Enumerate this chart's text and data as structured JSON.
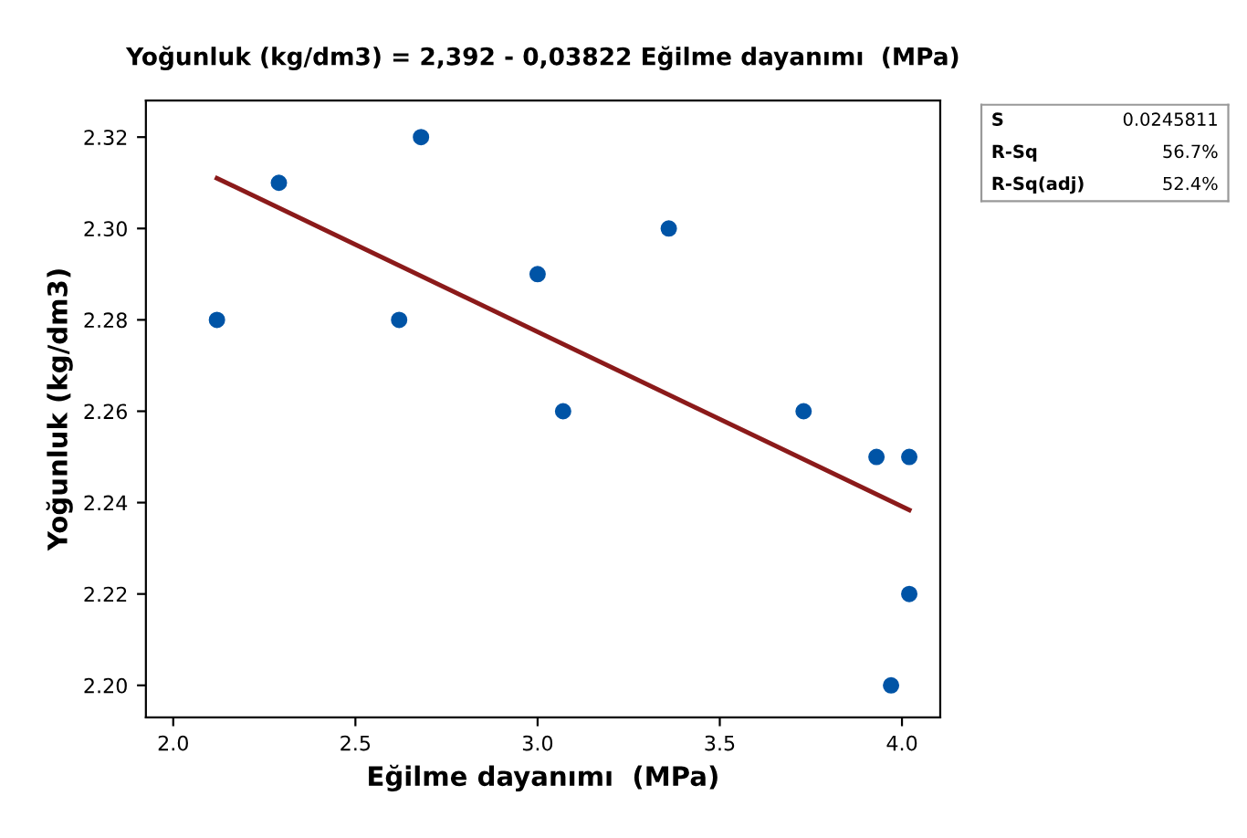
{
  "chart_data": {
    "type": "scatter",
    "title": "Yoğunluk (kg/dm3) = 2,392 - 0,03822 Eğilme dayanımı  (MPa)",
    "xlabel": "Eğilme dayanımı  (MPa)",
    "ylabel": "Yoğunluk (kg/dm3)",
    "x": [
      2.12,
      2.29,
      2.62,
      2.68,
      3.0,
      3.07,
      3.36,
      3.73,
      3.93,
      4.02,
      4.02,
      3.97
    ],
    "series": [
      {
        "color": "#0054a6",
        "marker": "circle",
        "values": [
          2.28,
          2.31,
          2.28,
          2.32,
          2.29,
          2.26,
          2.3,
          2.26,
          2.25,
          2.25,
          2.22,
          2.2
        ]
      },
      {
        "type": "line",
        "color": "#8b1a1a",
        "line_style": "solid",
        "x": [
          2.12,
          4.02
        ],
        "values": [
          2.311,
          2.2384
        ]
      }
    ],
    "xlim": [
      1.925,
      4.105
    ],
    "ylim": [
      2.193,
      2.328
    ],
    "xticks": [
      {
        "value": 2.0,
        "label": "2.0"
      },
      {
        "value": 2.5,
        "label": "2.5"
      },
      {
        "value": 3.0,
        "label": "3.0"
      },
      {
        "value": 3.5,
        "label": "3.5"
      },
      {
        "value": 4.0,
        "label": "4.0"
      }
    ],
    "yticks": [
      {
        "value": 2.2,
        "label": "2.20"
      },
      {
        "value": 2.22,
        "label": "2.22"
      },
      {
        "value": 2.24,
        "label": "2.24"
      },
      {
        "value": 2.26,
        "label": "2.26"
      },
      {
        "value": 2.28,
        "label": "2.28"
      },
      {
        "value": 2.3,
        "label": "2.30"
      },
      {
        "value": 2.32,
        "label": "2.32"
      }
    ],
    "grid": false,
    "legend": false,
    "annotations": [
      "S",
      "0.0245811",
      "R-Sq",
      "56.7%",
      "R-Sq(adj)",
      "52.4%"
    ]
  }
}
